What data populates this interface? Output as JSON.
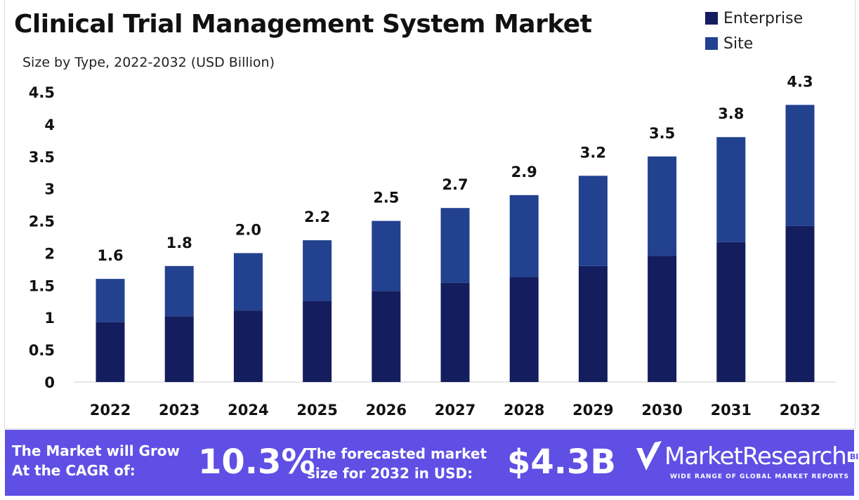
{
  "chart_data": {
    "type": "bar",
    "stacked": true,
    "title": "Clinical Trial Management System Market",
    "subtitle": "Size by Type, 2022-2032 (USD Billion)",
    "categories": [
      "2022",
      "2023",
      "2024",
      "2025",
      "2026",
      "2027",
      "2028",
      "2029",
      "2030",
      "2031",
      "2032"
    ],
    "series": [
      {
        "name": "Enterprise",
        "color": "#141d5e",
        "values": [
          0.93,
          1.02,
          1.11,
          1.26,
          1.41,
          1.54,
          1.63,
          1.8,
          1.96,
          2.17,
          2.42
        ]
      },
      {
        "name": "Site",
        "color": "#22418f",
        "values": [
          0.67,
          0.78,
          0.89,
          0.94,
          1.09,
          1.16,
          1.27,
          1.4,
          1.54,
          1.63,
          1.88
        ]
      }
    ],
    "totals_labels": [
      "1.6",
      "1.8",
      "2.0",
      "2.2",
      "2.5",
      "2.7",
      "2.9",
      "3.2",
      "3.5",
      "3.8",
      "4.3"
    ],
    "yticks": [
      "0",
      "0.5",
      "1",
      "1.5",
      "2",
      "2.5",
      "3",
      "3.5",
      "4",
      "4.5"
    ],
    "ylim": [
      0,
      4.5
    ],
    "grid": false,
    "legend_position": "top-right"
  },
  "banner": {
    "cagr_text_line1": "The Market will Grow",
    "cagr_text_line2": "At the CAGR of:",
    "cagr_value": "10.3%",
    "forecast_text_line1": "The forecasted market",
    "forecast_text_line2": "size for 2032 in USD:",
    "forecast_value": "$4.3B",
    "background": "#5f4fe4"
  },
  "logo": {
    "name": "MarketResearch",
    "badge": "BIZ",
    "tagline": "WIDE RANGE OF GLOBAL MARKET REPORTS"
  }
}
